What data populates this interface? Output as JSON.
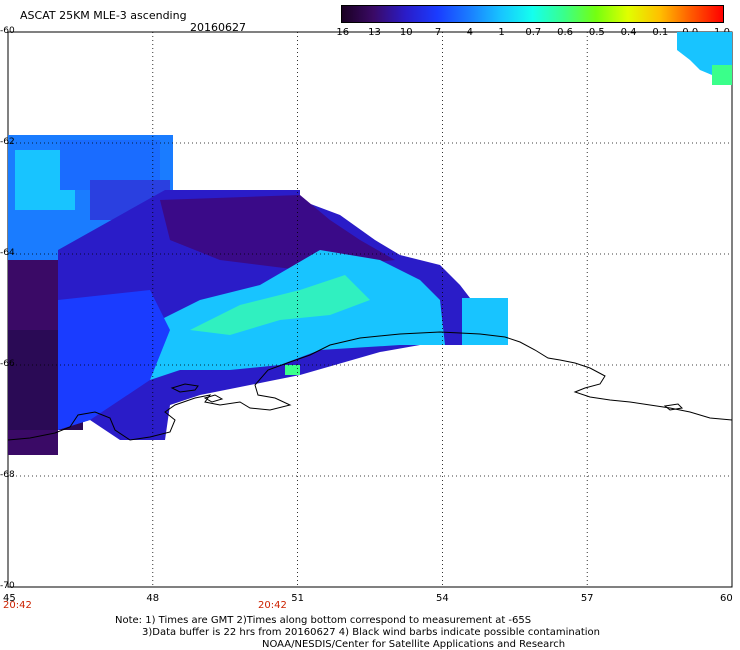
{
  "header": {
    "product": "ASCAT 25KM MLE-3 ascending",
    "date": "20160627"
  },
  "colorbar": {
    "labels": [
      "-16",
      "-13",
      "-10",
      "-7",
      "-4",
      "-1",
      "-0.7",
      "-0.6",
      "-0.5",
      "-0.4",
      "-0.1",
      "0.0",
      "1.0"
    ],
    "colors": [
      "#1a0022",
      "#3a0a66",
      "#2a1cc8",
      "#1a3cff",
      "#1a7cff",
      "#18c4ff",
      "#14ffee",
      "#3aff8a",
      "#74ff10",
      "#e0ff00",
      "#ffc000",
      "#ff5a00",
      "#ff0000"
    ]
  },
  "map": {
    "x_ticks": [
      "45",
      "48",
      "51",
      "54",
      "57",
      "60"
    ],
    "y_ticks": [
      "-60",
      "-62",
      "-64",
      "-66",
      "-68",
      "-70"
    ],
    "grid": "dotted",
    "land_outline_color": "#000000",
    "swath_field": "MLE values (Antarctic coastal swath)"
  },
  "times": {
    "left": "20:42",
    "mid": "20:42"
  },
  "notes": {
    "line1": "Note: 1) Times are GMT 2)Times along bottom correspond to measurement at -65S",
    "line2": "3)Data buffer is 22 hrs from 20160627 4) Black wind barbs indicate possible contamination",
    "line3": "NOAA/NESDIS/Center for Satellite Applications and Research"
  }
}
